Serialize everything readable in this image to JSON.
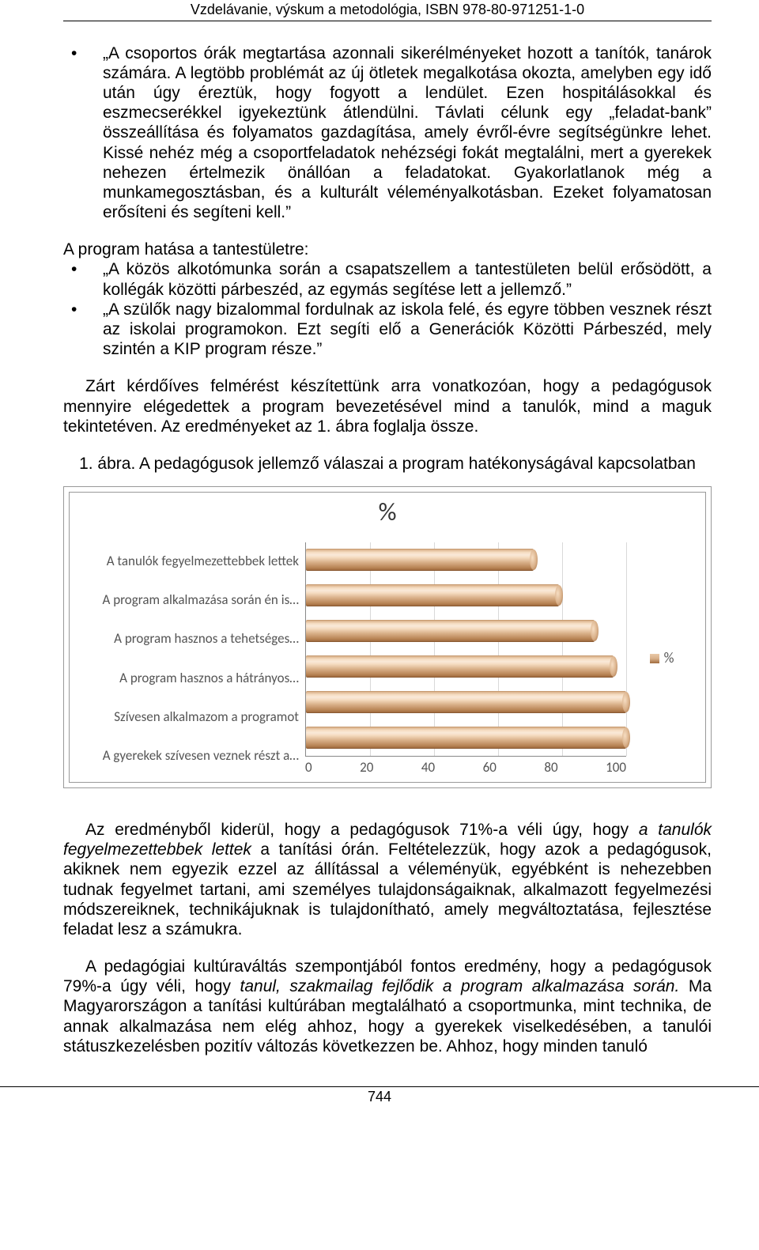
{
  "header": "Vzdelávanie, výskum a metodológia, ISBN 978-80-971251-1-0",
  "bullets1": [
    "„A csoportos órák megtartása azonnali sikerélményeket hozott a tanítók, tanárok számára. A legtöbb problémát az új ötletek megalkotása okozta, amelyben egy idő után úgy éreztük, hogy fogyott a lendület. Ezen hospitálásokkal és eszmecserékkel igyekeztünk átlendülni. Távlati célunk egy „feladat-bank” összeállítása és folyamatos gazdagítása, amely évről-évre segítségünkre lehet. Kissé nehéz még a csoportfeladatok nehézségi fokát megtalálni, mert a gyerekek nehezen értelmezik önállóan a feladatokat. Gyakorlatlanok még a munkamegosztásban, és a kulturált véleményalkotásban. Ezeket folyamatosan erősíteni és segíteni kell.”"
  ],
  "section2_intro": "A program hatása a tantestületre:",
  "bullets2": [
    "„A közös alkotómunka során a csapatszellem a tantestületen belül erősödött, a kollégák közötti párbeszéd, az egymás segítése lett a jellemző.”",
    "„A szülők nagy bizalommal fordulnak az iskola felé, és egyre többen vesznek részt az iskolai programokon. Ezt segíti elő a Generációk Közötti Párbeszéd, mely szintén a KIP program része.”"
  ],
  "para1": "Zárt kérdőíves felmérést készítettünk arra vonatkozóan, hogy a pedagógusok mennyire elégedettek a program bevezetésével mind a tanulók, mind a maguk tekintetéven. Az eredményeket az 1. ábra foglalja össze.",
  "figure_caption": "1. ábra. A pedagógusok jellemző válaszai a program hatékonyságával kapcsolatban",
  "chart": {
    "type": "bar-horizontal",
    "title": "%",
    "categories": [
      "A tanulók fegyelmezettebbek lettek",
      "A program alkalmazása során én is…",
      "A program hasznos a tehetséges…",
      "A program hasznos a hátrányos…",
      "Szívesen alkalmazom a programot",
      "A gyerekek szívesen veznek részt a…"
    ],
    "values": [
      71,
      79,
      90,
      96,
      100,
      100
    ],
    "xlim": [
      0,
      100
    ],
    "xticks": [
      0,
      20,
      40,
      60,
      80,
      100
    ],
    "bar_color_light": "#f6ddc2",
    "bar_color_mid": "#d9b089",
    "bar_color_dark": "#a06b3e",
    "grid_color": "#d9d9d9",
    "axis_color": "#888888",
    "legend_label": "%",
    "label_fontsize": 17,
    "title_fontsize": 32,
    "background_color": "#ffffff"
  },
  "para2_parts": [
    "Az eredményből kiderül, hogy a pedagógusok 71%-a véli úgy, hogy ",
    "a tanulók fegyelmezettebbek lettek",
    " a tanítási órán. Feltételezzük, hogy azok a pedagógusok, akiknek nem egyezik ezzel az állítással a véleményük, egyébként is nehezebben tudnak fegyelmet tartani, ami személyes tulajdonságaiknak, alkalmazott fegyelmezési módszereiknek, technikájuknak is tulajdonítható, amely megváltoztatása, fejlesztése feladat lesz a számukra."
  ],
  "para3_parts": [
    "A pedagógiai kultúraváltás szempontjából fontos eredmény, hogy a pedagógusok 79%-a úgy véli, hogy ",
    "tanul, szakmailag fejlődik a program alkalmazása során.",
    " Ma Magyarországon a tanítási kultúrában megtalálható a csoportmunka, mint technika, de annak alkalmazása nem elég ahhoz, hogy a gyerekek viselkedésében, a tanulói státuszkezelésben pozitív változás következzen be. Ahhoz, hogy minden tanuló"
  ],
  "page_number": "744"
}
